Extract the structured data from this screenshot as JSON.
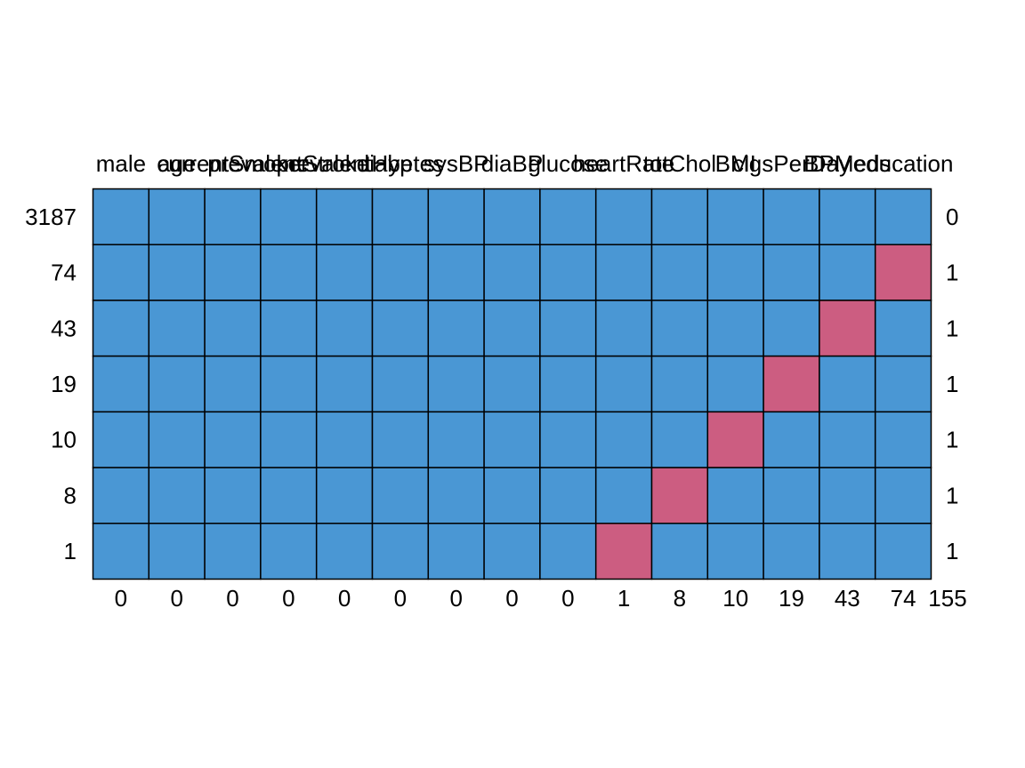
{
  "chart_data": {
    "type": "heatmap",
    "title": "",
    "variables": [
      "male",
      "age",
      "currentSmoker",
      "prevalentStroke",
      "prevalentHyp",
      "diabetes",
      "sysBP",
      "diaBP",
      "glucose",
      "heartRate",
      "totChol",
      "BMI",
      "cigsPerDay",
      "BPMeds",
      "education"
    ],
    "rows": [
      {
        "count": "3187",
        "missing_count": "0",
        "pattern": [
          1,
          1,
          1,
          1,
          1,
          1,
          1,
          1,
          1,
          1,
          1,
          1,
          1,
          1,
          1
        ]
      },
      {
        "count": "74",
        "missing_count": "1",
        "pattern": [
          1,
          1,
          1,
          1,
          1,
          1,
          1,
          1,
          1,
          1,
          1,
          1,
          1,
          1,
          0
        ]
      },
      {
        "count": "43",
        "missing_count": "1",
        "pattern": [
          1,
          1,
          1,
          1,
          1,
          1,
          1,
          1,
          1,
          1,
          1,
          1,
          1,
          0,
          1
        ]
      },
      {
        "count": "19",
        "missing_count": "1",
        "pattern": [
          1,
          1,
          1,
          1,
          1,
          1,
          1,
          1,
          1,
          1,
          1,
          1,
          0,
          1,
          1
        ]
      },
      {
        "count": "10",
        "missing_count": "1",
        "pattern": [
          1,
          1,
          1,
          1,
          1,
          1,
          1,
          1,
          1,
          1,
          1,
          0,
          1,
          1,
          1
        ]
      },
      {
        "count": "8",
        "missing_count": "1",
        "pattern": [
          1,
          1,
          1,
          1,
          1,
          1,
          1,
          1,
          1,
          1,
          0,
          1,
          1,
          1,
          1
        ]
      },
      {
        "count": "1",
        "missing_count": "1",
        "pattern": [
          1,
          1,
          1,
          1,
          1,
          1,
          1,
          1,
          1,
          0,
          1,
          1,
          1,
          1,
          1
        ]
      }
    ],
    "column_missing_totals": [
      "0",
      "0",
      "0",
      "0",
      "0",
      "0",
      "0",
      "0",
      "0",
      "1",
      "8",
      "10",
      "19",
      "43",
      "74"
    ],
    "total_missing": "155",
    "colors": {
      "observed": "#4a97d4",
      "missing": "#cc5d81",
      "grid": "#000000"
    }
  }
}
